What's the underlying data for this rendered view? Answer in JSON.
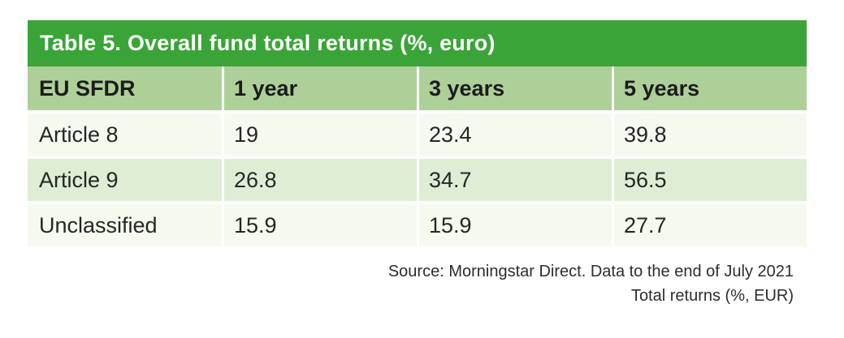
{
  "table": {
    "title": "Table 5. Overall fund total returns (%, euro)",
    "columns": [
      "EU SFDR",
      "1 year",
      "3 years",
      "5 years"
    ],
    "rows": [
      {
        "label": "Article 8",
        "values": [
          "19",
          "23.4",
          "39.8"
        ]
      },
      {
        "label": "Article 9",
        "values": [
          "26.8",
          "34.7",
          "56.5"
        ]
      },
      {
        "label": "Unclassified",
        "values": [
          "15.9",
          "15.9",
          "27.7"
        ]
      }
    ]
  },
  "footer": {
    "source_line": "Source: Morningstar Direct. Data to the end of July 2021",
    "note_line": "Total returns (%, EUR)"
  },
  "colors": {
    "title_bar_green": "#3BA438",
    "header_row_green": "#ADD099",
    "row_light": "#F6F9F0",
    "row_green": "#DFEDD5",
    "title_text": "#FFFFFF",
    "body_text": "#262626"
  },
  "chart_data": {
    "type": "table",
    "title": "Table 5. Overall fund total returns (%, euro)",
    "columns": [
      "EU SFDR",
      "1 year",
      "3 years",
      "5 years"
    ],
    "rows": [
      [
        "Article 8",
        19,
        23.4,
        39.8
      ],
      [
        "Article 9",
        26.8,
        34.7,
        56.5
      ],
      [
        "Unclassified",
        15.9,
        15.9,
        27.7
      ]
    ],
    "source": "Source: Morningstar Direct. Data to the end of July 2021",
    "note": "Total returns (%, EUR)"
  }
}
